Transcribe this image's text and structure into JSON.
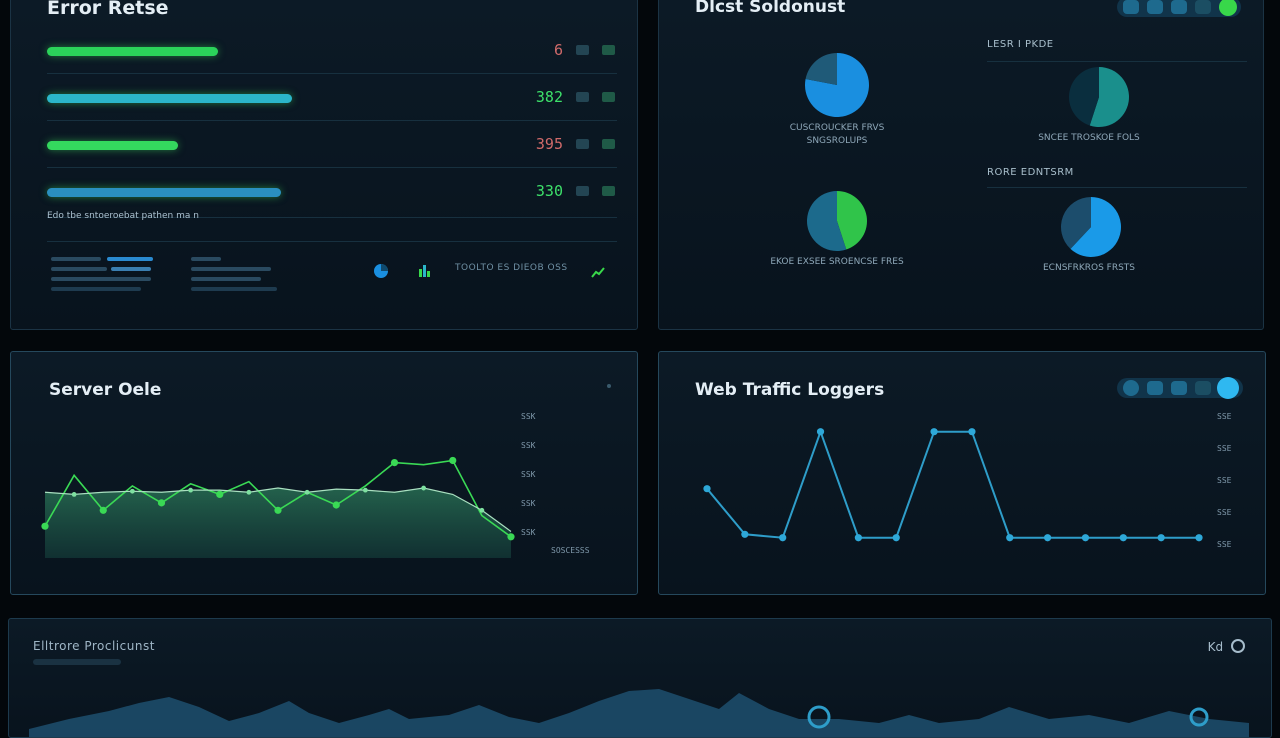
{
  "error_panel": {
    "title": "Error Retse",
    "rows": [
      {
        "value": "6",
        "color": "#d06a6a",
        "fill": 0.3,
        "track": "#2bd35a"
      },
      {
        "value": "382",
        "color": "#3de06a",
        "fill": 0.43,
        "track": "#2bb6c9"
      },
      {
        "value": "395",
        "color": "#d06a6a",
        "fill": 0.23,
        "track": "#34d85e"
      },
      {
        "value": "330",
        "color": "#3de06a",
        "fill": 0.41,
        "track": "#2a8fbf"
      }
    ],
    "caption": "Edo tbe sntoeroebat pathen ma n",
    "footer_text": "TOOLTO ES DIEOB OSS"
  },
  "distribution_panel": {
    "title": "Dlcst Soldonust",
    "sections": [
      {
        "heading": "LESR I PKDE"
      },
      {
        "heading": "RORE EDNTSRM"
      }
    ],
    "pies": [
      {
        "label_line1": "CUSCROUCKER FRVS",
        "label_line2": "SNGSROLUPS",
        "slices": [
          0.78,
          0.22
        ],
        "colors": [
          "#1a8fe0",
          "#1f5a78"
        ]
      },
      {
        "label_line1": "SNCEE TROSKOE FOLS",
        "label_line2": "",
        "slices": [
          0.55,
          0.45
        ],
        "colors": [
          "#1a8f8c",
          "#0a2e3e"
        ]
      },
      {
        "label_line1": "EKOE EXSEE SROENCSE FRES",
        "label_line2": "",
        "slices": [
          0.45,
          0.55
        ],
        "colors": [
          "#30c44a",
          "#1c6a8c"
        ]
      },
      {
        "label_line1": "ECNSFRKROS FRSTS",
        "label_line2": "",
        "slices": [
          0.62,
          0.38
        ],
        "colors": [
          "#1a9ae8",
          "#1c4d6c"
        ]
      }
    ]
  },
  "server_panel": {
    "title": "Server Oele",
    "y_labels": [
      "SSK",
      "SSK",
      "SSK",
      "SSK",
      "SSK"
    ],
    "x_label": "SOSCESSS",
    "chart_data": {
      "type": "line",
      "x": [
        0,
        1,
        2,
        3,
        4,
        5,
        6,
        7,
        8,
        9,
        10,
        11,
        12,
        13,
        14,
        15,
        16
      ],
      "series": [
        {
          "values": [
            0.3,
            0.78,
            0.45,
            0.68,
            0.52,
            0.7,
            0.6,
            0.72,
            0.45,
            0.62,
            0.5,
            0.68,
            0.9,
            0.88,
            0.92,
            0.4,
            0.2
          ],
          "color": "#3ad955"
        },
        {
          "values": [
            0.62,
            0.6,
            0.62,
            0.63,
            0.62,
            0.64,
            0.64,
            0.62,
            0.66,
            0.62,
            0.65,
            0.64,
            0.62,
            0.66,
            0.6,
            0.45,
            0.25
          ],
          "color": "#6fd58a"
        }
      ],
      "ylim": [
        0,
        1
      ]
    }
  },
  "web_panel": {
    "title": "Web Traffic Loggers",
    "y_labels": [
      "SSE",
      "SSE",
      "SSE",
      "SSE",
      "SSE"
    ],
    "chart_data": {
      "type": "line",
      "x": [
        0,
        1,
        2,
        3,
        4,
        5,
        6,
        7,
        8,
        9,
        10,
        11,
        12,
        13
      ],
      "series": [
        {
          "values": [
            0.45,
            0.05,
            0.02,
            0.95,
            0.02,
            0.02,
            0.95,
            0.95,
            0.02,
            0.02,
            0.02,
            0.02,
            0.02,
            0.02
          ],
          "color": "#2e9dc9"
        }
      ],
      "ylim": [
        0,
        1
      ]
    }
  },
  "bottom_panel": {
    "title": "Elltrore Proclicunst",
    "control": "Kd"
  },
  "colors": {
    "accent_green": "#38d84a",
    "accent_blue": "#1a9ae8",
    "panel_border": "#1b3344"
  }
}
